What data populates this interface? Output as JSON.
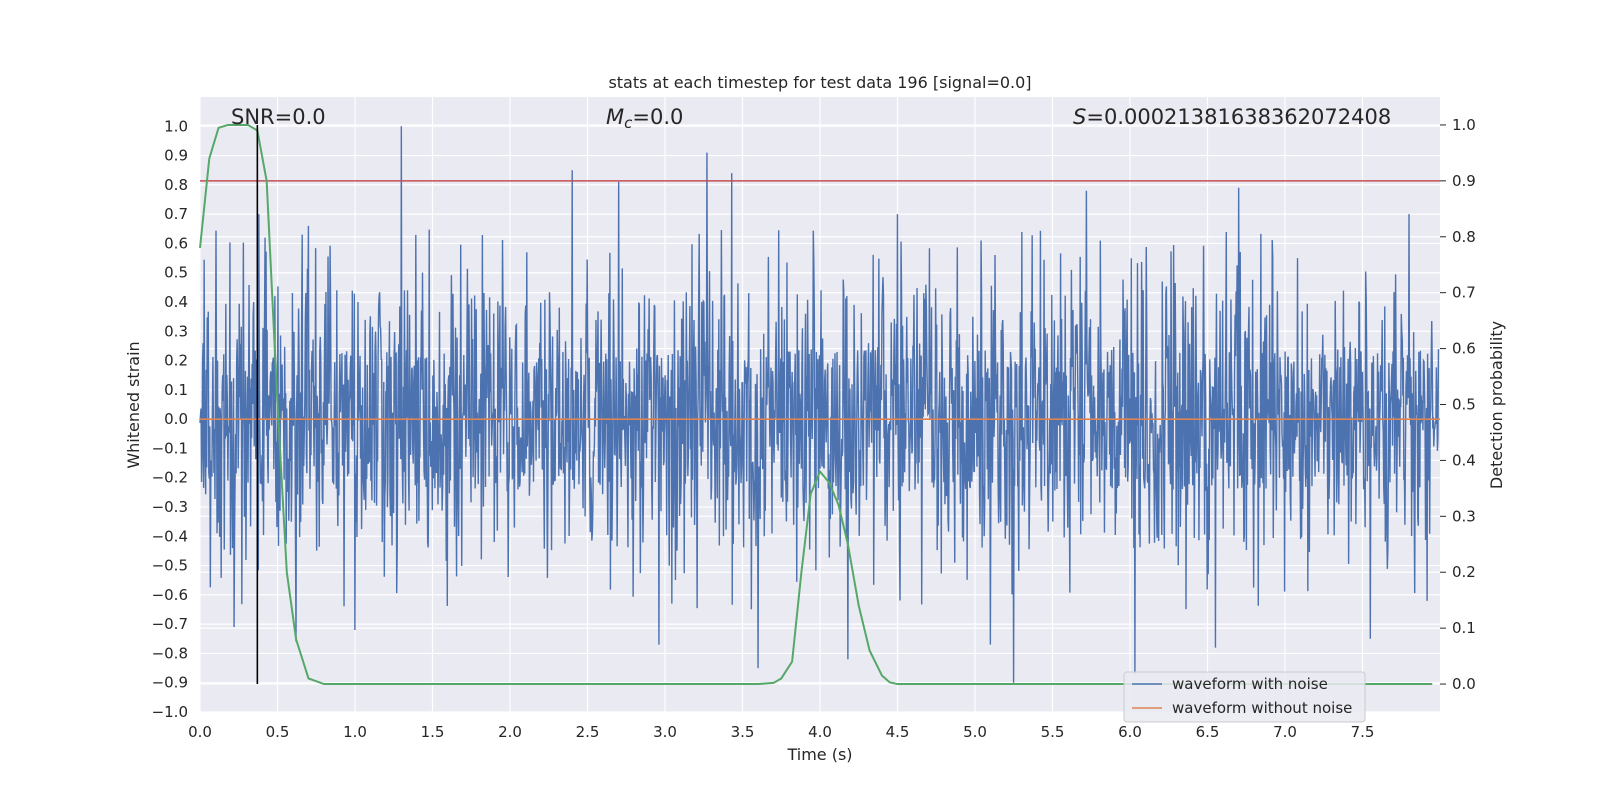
{
  "chart_data": {
    "type": "line",
    "title": "stats at each timestep for test data 196 [signal=0.0]",
    "xlabel": "Time (s)",
    "ylabel": "Whitened strain",
    "ylabel_right": "Detection probability",
    "xlim": [
      0.0,
      8.0
    ],
    "ylim": [
      -1.0,
      1.1
    ],
    "ylim_right": [
      -0.05,
      1.05
    ],
    "x_ticks": [
      "0.0",
      "0.5",
      "1.0",
      "1.5",
      "2.0",
      "2.5",
      "3.0",
      "3.5",
      "4.0",
      "4.5",
      "5.0",
      "5.5",
      "6.0",
      "6.5",
      "7.0",
      "7.5"
    ],
    "y_ticks": [
      "1.0",
      "0.9",
      "0.8",
      "0.7",
      "0.6",
      "0.5",
      "0.4",
      "0.3",
      "0.2",
      "0.1",
      "0.0",
      "-0.1",
      "-0.2",
      "-0.3",
      "-0.4",
      "-0.5",
      "-0.6",
      "-0.7",
      "-0.8",
      "-0.9",
      "-1.0"
    ],
    "y_ticks_right": [
      "1.0",
      "0.9",
      "0.8",
      "0.7",
      "0.6",
      "0.5",
      "0.4",
      "0.3",
      "0.2",
      "0.1",
      "0.0"
    ],
    "annotations": {
      "snr": "SNR=0.0",
      "mc_symbol": "M",
      "mc_sub": "c",
      "mc_value": "=0.0",
      "s_symbol": "S",
      "s_value": "=0.00021381638362072408"
    },
    "threshold_right": 0.9,
    "marker_time": 0.37,
    "grid": true,
    "legend_position": "lower-right",
    "series": [
      {
        "name": "waveform with noise",
        "color": "#4c72b0",
        "axis": "left",
        "description": "dense noise, approx ±0.25 core with spikes up to 1.0 and down to -0.9",
        "spikes": [
          [
            0.38,
            0.7
          ],
          [
            0.42,
            0.62
          ],
          [
            0.66,
            0.63
          ],
          [
            0.7,
            0.66
          ],
          [
            1.3,
            1.0
          ],
          [
            2.4,
            0.85
          ],
          [
            2.7,
            0.81
          ],
          [
            3.27,
            0.91
          ],
          [
            3.43,
            0.84
          ],
          [
            3.6,
            0.7
          ],
          [
            4.5,
            0.7
          ],
          [
            5.25,
            0.68
          ],
          [
            5.72,
            0.78
          ],
          [
            6.7,
            0.79
          ],
          [
            7.8,
            0.7
          ],
          [
            0.22,
            -0.71
          ],
          [
            0.62,
            -0.76
          ],
          [
            1.0,
            -0.72
          ],
          [
            2.96,
            -0.77
          ],
          [
            3.6,
            -0.85
          ],
          [
            4.18,
            -0.82
          ],
          [
            5.1,
            -0.77
          ],
          [
            5.25,
            -0.9
          ],
          [
            6.03,
            -0.87
          ],
          [
            6.55,
            -0.78
          ],
          [
            7.55,
            -0.75
          ]
        ]
      },
      {
        "name": "waveform without noise",
        "color": "#dd8452",
        "axis": "left",
        "x": [
          0.0,
          8.0
        ],
        "values": [
          0.0,
          0.0
        ]
      },
      {
        "name": "detection probability",
        "color": "#55a868",
        "axis": "right",
        "x": [
          0.0,
          0.06,
          0.12,
          0.18,
          0.25,
          0.31,
          0.37,
          0.43,
          0.5,
          0.56,
          0.62,
          0.7,
          0.8,
          1.0,
          2.0,
          3.0,
          3.4,
          3.6,
          3.7,
          3.75,
          3.82,
          3.88,
          3.94,
          4.0,
          4.06,
          4.12,
          4.18,
          4.25,
          4.32,
          4.4,
          4.45,
          4.5,
          5.0,
          6.0,
          7.0,
          7.95
        ],
        "values": [
          0.78,
          0.94,
          0.995,
          1.0,
          1.0,
          1.0,
          0.99,
          0.9,
          0.5,
          0.2,
          0.08,
          0.01,
          0.0,
          0.0,
          0.0,
          0.0,
          0.0,
          0.0,
          0.002,
          0.01,
          0.04,
          0.2,
          0.34,
          0.38,
          0.36,
          0.32,
          0.25,
          0.14,
          0.06,
          0.015,
          0.003,
          0.0,
          0.0,
          0.0,
          0.0,
          0.0
        ]
      }
    ]
  }
}
